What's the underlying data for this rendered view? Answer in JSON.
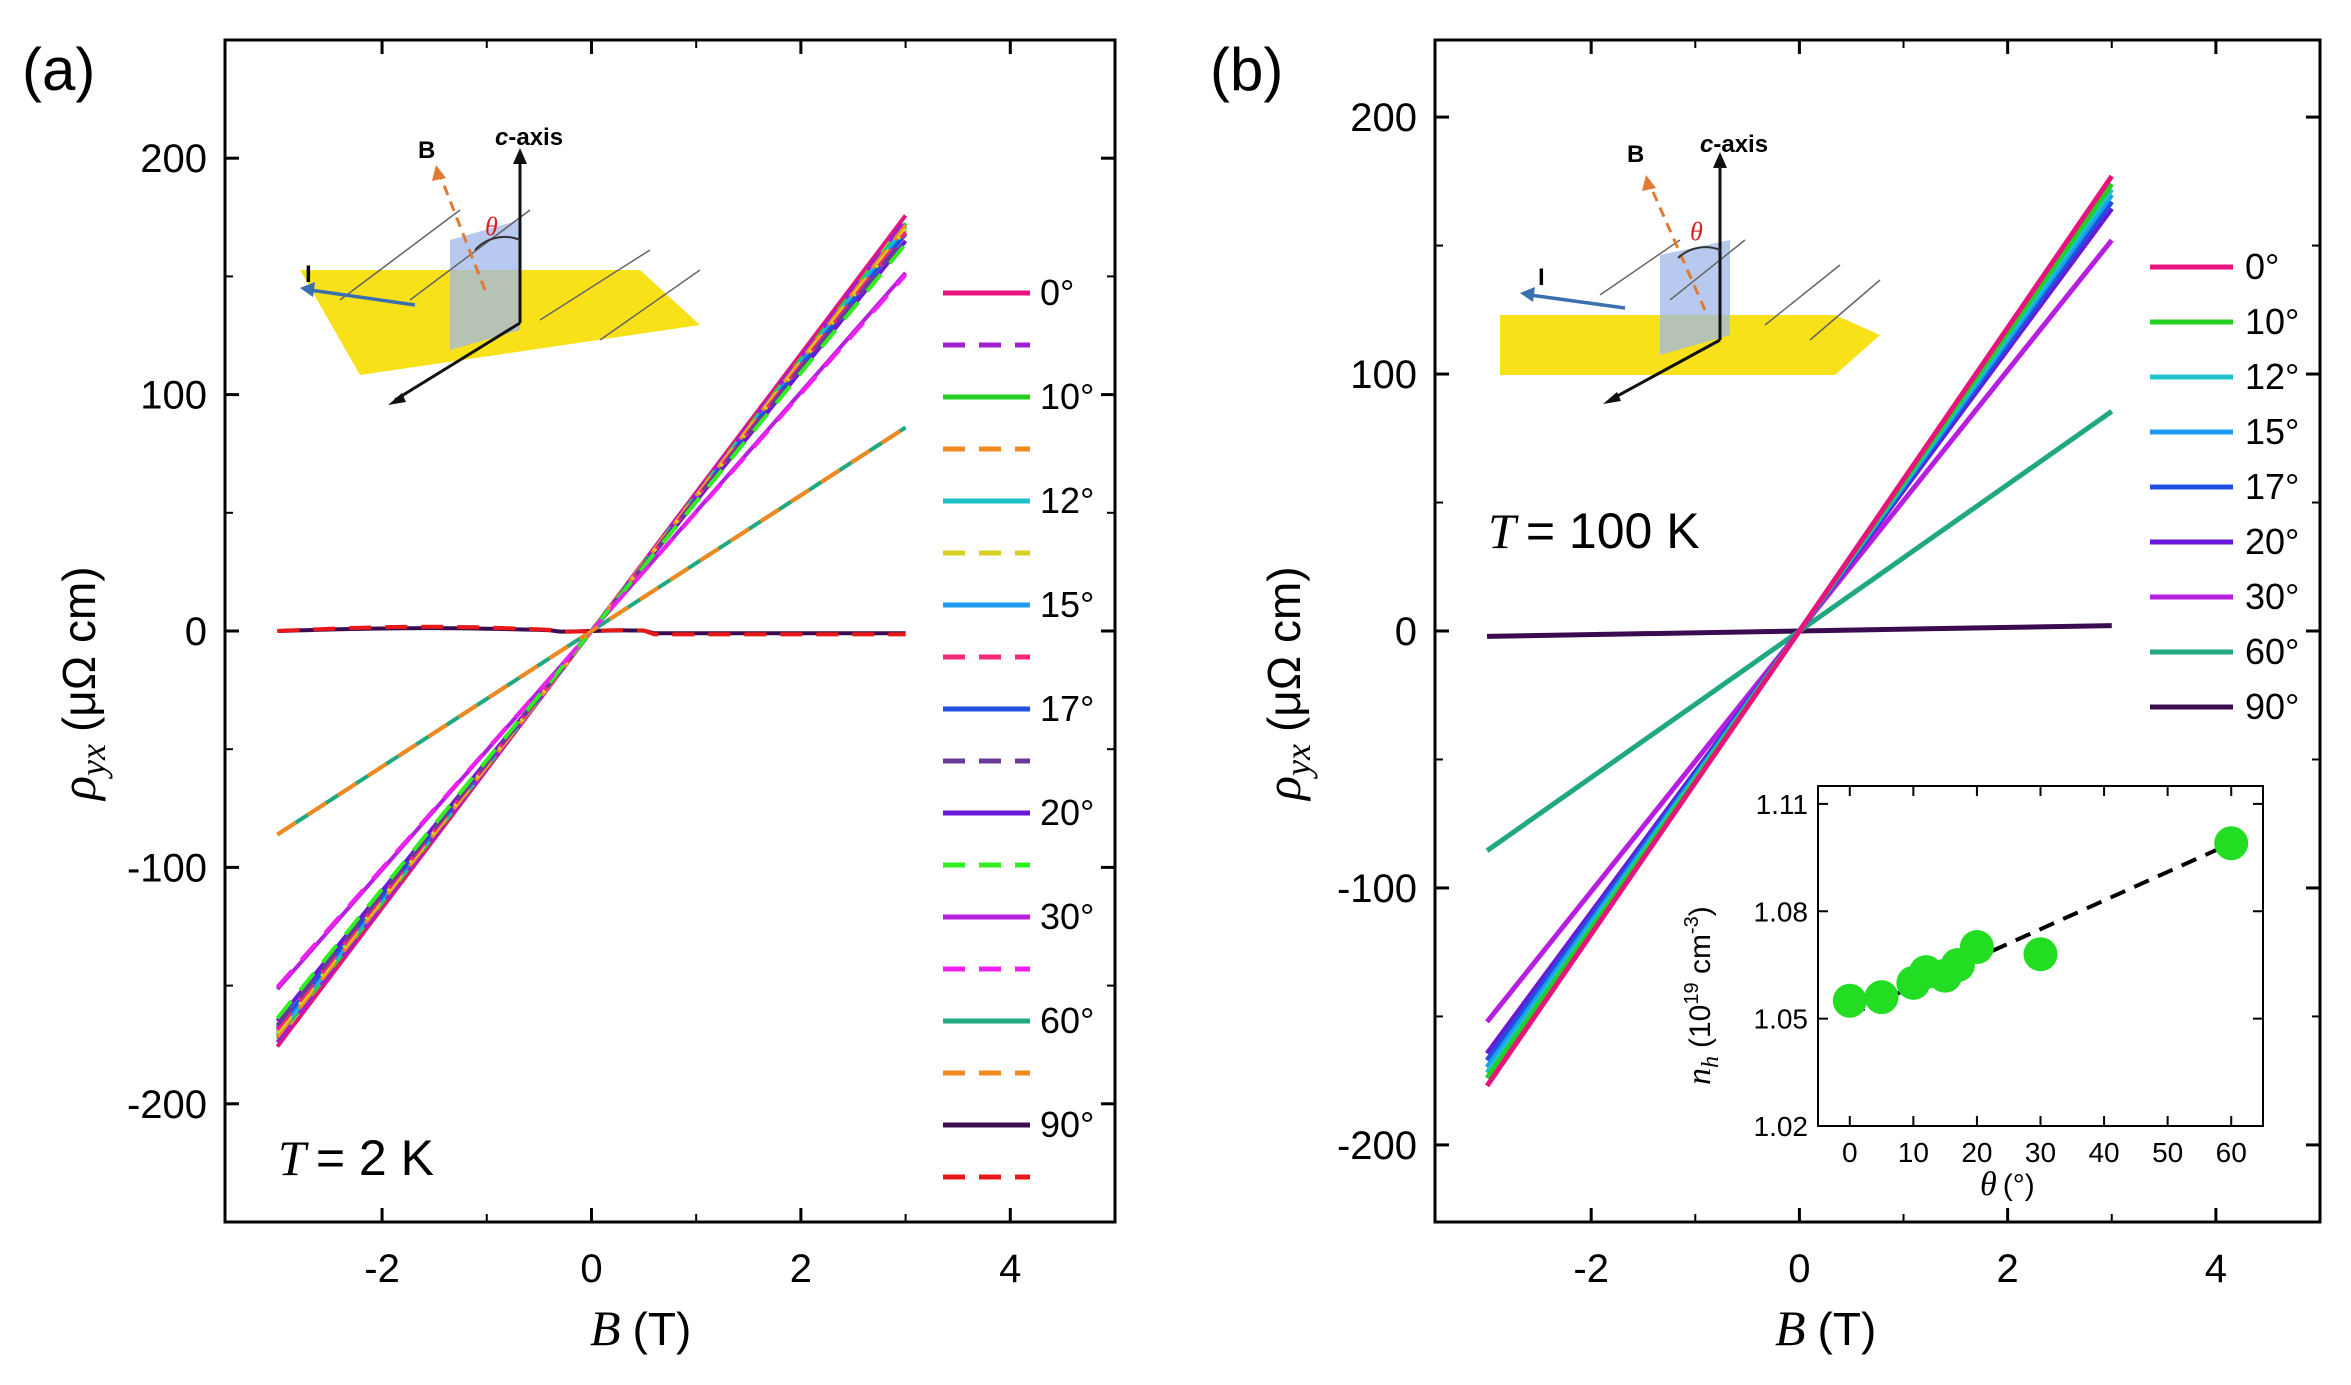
{
  "figure": {
    "panel_a_label": "(a)",
    "panel_b_label": "(b)",
    "x_var": "B",
    "x_unit": "(T)",
    "y_var": "ρ",
    "y_sub": "yx",
    "y_unit": "(μΩ cm)",
    "temp_a_var": "T",
    "temp_a_rest": "= 2 K",
    "temp_b_var": "T",
    "temp_b_rest": "= 100 K",
    "schematic": {
      "b_label": "B",
      "c_label": "c",
      "c_rest": "-axis",
      "i_label": "I",
      "theta_label": "θ"
    },
    "inset": {
      "y_var": "n",
      "y_sub": "h",
      "y_unit_pre": "(10",
      "y_unit_exp": "19",
      "y_unit_mid": " cm",
      "y_unit_exp2": "-3",
      "y_unit_post": ")",
      "x_var": "θ",
      "x_unit": "(°)"
    },
    "colors": {
      "0": "#e8137c",
      "10": "#22d022",
      "12": "#1fc2c8",
      "15": "#1b9cf0",
      "17": "#2050e0",
      "20": "#6a18d8",
      "30": "#b61ee0",
      "60": "#20a880",
      "90": "#3c0a50",
      "dash_0": "#a020d0",
      "dash_10": "#f08a20",
      "dash_12": "#d8d020",
      "dash_15": "#f0287a",
      "dash_17": "#6a3a9a",
      "dash_20": "#30ee20",
      "dash_30": "#f020f0",
      "dash_60": "#f08a20",
      "dash_90": "#e81818",
      "green_pt": "#22dd22"
    }
  },
  "chart_data": [
    {
      "panel": "(a)",
      "type": "line",
      "title": "",
      "xlabel": "B (T)",
      "ylabel": "ρyx (μΩ cm)",
      "xlim": [
        -3.5,
        5.0
      ],
      "ylim": [
        -250,
        250
      ],
      "xticks": [
        -2,
        0,
        2,
        4
      ],
      "yticks": [
        -200,
        -100,
        0,
        100,
        200
      ],
      "xtick_labels": [
        "-2",
        "0",
        "2",
        "4"
      ],
      "ytick_labels": [
        "-200",
        "-100",
        "0",
        "100",
        "200"
      ],
      "x_range": [
        -3,
        3
      ],
      "annotation": "T = 2 K",
      "series": [
        {
          "name": "0°",
          "style": "solid",
          "slope": 58.6
        },
        {
          "name": "10°",
          "style": "solid",
          "slope": 57.5
        },
        {
          "name": "12°",
          "style": "solid",
          "slope": 57.0
        },
        {
          "name": "15°",
          "style": "solid",
          "slope": 56.5
        },
        {
          "name": "17°",
          "style": "solid",
          "slope": 56.0
        },
        {
          "name": "20°",
          "style": "solid",
          "slope": 55.0
        },
        {
          "name": "30°",
          "style": "solid",
          "slope": 50.5
        },
        {
          "name": "60°",
          "style": "solid",
          "slope": 28.7
        },
        {
          "name": "90°",
          "style": "solid",
          "slope": 0
        },
        {
          "name": "0° (dashed)",
          "style": "dashed",
          "slope": 58.0
        },
        {
          "name": "10° (dashed)",
          "style": "dashed",
          "slope": 57.2
        },
        {
          "name": "12° (dashed)",
          "style": "dashed",
          "slope": 56.7
        },
        {
          "name": "15° (dashed)",
          "style": "dashed",
          "slope": 56.2
        },
        {
          "name": "17° (dashed)",
          "style": "dashed",
          "slope": 55.6
        },
        {
          "name": "20° (dashed)",
          "style": "dashed",
          "slope": 54.6
        },
        {
          "name": "30° (dashed)",
          "style": "dashed",
          "slope": 50.2
        },
        {
          "name": "60° (dashed)",
          "style": "dashed",
          "slope": 28.7
        },
        {
          "name": "90° (dashed)",
          "style": "dashed",
          "slope": 0
        }
      ],
      "legend": [
        "0°",
        "10°",
        "12°",
        "15°",
        "17°",
        "20°",
        "30°",
        "60°",
        "90°"
      ]
    },
    {
      "panel": "(b)",
      "type": "line",
      "title": "",
      "xlabel": "B (T)",
      "ylabel": "ρyx (μΩ cm)",
      "xlim": [
        -3.5,
        5.0
      ],
      "ylim": [
        -230,
        230
      ],
      "xticks": [
        -2,
        0,
        2,
        4
      ],
      "yticks": [
        -200,
        -100,
        0,
        100,
        200
      ],
      "xtick_labels": [
        "-2",
        "0",
        "2",
        "4"
      ],
      "ytick_labels": [
        "-200",
        "-100",
        "0",
        "100",
        "200"
      ],
      "x_range": [
        -3,
        3
      ],
      "annotation": "T = 100 K",
      "series": [
        {
          "name": "0°",
          "slope": 59.0
        },
        {
          "name": "10°",
          "slope": 58.0
        },
        {
          "name": "12°",
          "slope": 57.3
        },
        {
          "name": "15°",
          "slope": 56.6
        },
        {
          "name": "17°",
          "slope": 55.7
        },
        {
          "name": "20°",
          "slope": 54.8
        },
        {
          "name": "30°",
          "slope": 50.7
        },
        {
          "name": "60°",
          "slope": 28.5
        },
        {
          "name": "90°",
          "slope": 0.7
        }
      ],
      "legend": [
        "0°",
        "10°",
        "12°",
        "15°",
        "17°",
        "20°",
        "30°",
        "60°",
        "90°"
      ]
    },
    {
      "panel": "(b) inset",
      "type": "scatter",
      "title": "",
      "xlabel": "θ (°)",
      "ylabel": "nh (10^19 cm^-3)",
      "xlim": [
        -5,
        65
      ],
      "ylim": [
        1.02,
        1.115
      ],
      "xticks": [
        0,
        10,
        20,
        30,
        40,
        50,
        60
      ],
      "yticks": [
        1.02,
        1.05,
        1.08,
        1.11
      ],
      "xtick_labels": [
        "0",
        "10",
        "20",
        "30",
        "40",
        "50",
        "60"
      ],
      "ytick_labels": [
        "1.02",
        "1.05",
        "1.08",
        "1.11"
      ],
      "points": {
        "x": [
          0,
          5,
          10,
          12,
          15,
          17,
          20,
          30,
          60
        ],
        "y": [
          1.055,
          1.056,
          1.06,
          1.063,
          1.062,
          1.065,
          1.07,
          1.068,
          1.099
        ]
      },
      "fit": {
        "style": "dashed",
        "x": [
          0,
          60
        ],
        "y": [
          1.051,
          1.099
        ]
      }
    }
  ]
}
